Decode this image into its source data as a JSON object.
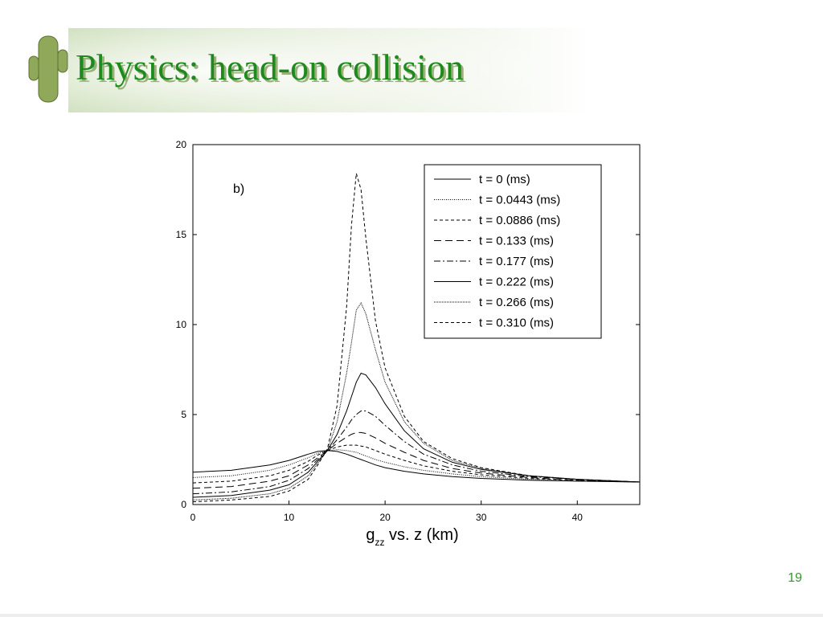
{
  "slide_title": "Physics: head-on collision",
  "page_number": "19",
  "chart_data": {
    "type": "line",
    "annotation": "b)",
    "x_label": [
      "g",
      "zz",
      " vs. z (km)"
    ],
    "x": [
      0,
      4,
      8,
      10,
      12,
      13,
      14,
      15,
      16,
      16.5,
      17,
      17.5,
      18,
      19,
      20,
      22,
      24,
      27,
      30,
      35,
      40,
      46.5
    ],
    "xlim": [
      0,
      46.5
    ],
    "xticks": [
      0,
      10,
      20,
      30,
      40
    ],
    "ylim": [
      0,
      20
    ],
    "yticks": [
      0,
      5,
      10,
      15,
      20
    ],
    "legend": "upper right",
    "series": [
      {
        "name": "t = 0 (ms)",
        "color": "#000000",
        "dash": "none",
        "values": [
          1.8,
          1.9,
          2.2,
          2.45,
          2.8,
          2.95,
          3.0,
          2.95,
          2.8,
          2.7,
          2.6,
          2.5,
          2.4,
          2.2,
          2.05,
          1.85,
          1.7,
          1.55,
          1.45,
          1.35,
          1.3,
          1.25
        ]
      },
      {
        "name": "t = 0.0443 (ms)",
        "color": "#000000",
        "dash": "1 1.5",
        "values": [
          1.5,
          1.6,
          1.9,
          2.2,
          2.6,
          2.85,
          3.0,
          3.05,
          3.0,
          2.95,
          2.9,
          2.8,
          2.7,
          2.5,
          2.35,
          2.1,
          1.9,
          1.7,
          1.55,
          1.4,
          1.3,
          1.25
        ]
      },
      {
        "name": "t = 0.0886 (ms)",
        "color": "#000000",
        "dash": "4 3",
        "values": [
          1.2,
          1.3,
          1.6,
          1.9,
          2.4,
          2.75,
          3.0,
          3.2,
          3.3,
          3.3,
          3.3,
          3.25,
          3.2,
          3.0,
          2.8,
          2.45,
          2.15,
          1.85,
          1.65,
          1.45,
          1.35,
          1.25
        ]
      },
      {
        "name": "t = 0.133 (ms)",
        "color": "#000000",
        "dash": "9 5",
        "values": [
          0.9,
          1.0,
          1.3,
          1.6,
          2.2,
          2.6,
          3.0,
          3.4,
          3.75,
          3.9,
          4.0,
          4.0,
          3.95,
          3.7,
          3.4,
          2.9,
          2.45,
          2.0,
          1.75,
          1.5,
          1.35,
          1.25
        ]
      },
      {
        "name": "t = 0.177 (ms)",
        "color": "#000000",
        "dash": "8 3 2 3",
        "values": [
          0.6,
          0.7,
          1.0,
          1.35,
          2.0,
          2.5,
          3.0,
          3.6,
          4.3,
          4.7,
          5.0,
          5.2,
          5.2,
          4.9,
          4.4,
          3.5,
          2.8,
          2.2,
          1.85,
          1.55,
          1.4,
          1.25
        ]
      },
      {
        "name": "t = 0.222 (ms)",
        "color": "#000000",
        "dash": "none",
        "values": [
          0.4,
          0.5,
          0.8,
          1.1,
          1.8,
          2.4,
          3.0,
          3.9,
          5.2,
          6.0,
          6.8,
          7.3,
          7.2,
          6.5,
          5.6,
          4.1,
          3.1,
          2.35,
          1.95,
          1.6,
          1.4,
          1.25
        ]
      },
      {
        "name": "t = 0.266 (ms)",
        "color": "#000000",
        "dash": "1 1",
        "values": [
          0.25,
          0.35,
          0.6,
          0.9,
          1.6,
          2.3,
          3.0,
          4.6,
          7.3,
          9.0,
          10.8,
          11.2,
          10.6,
          8.6,
          6.8,
          4.6,
          3.4,
          2.45,
          2.0,
          1.6,
          1.4,
          1.25
        ]
      },
      {
        "name": "t = 0.310 (ms)",
        "color": "#000000",
        "dash": "4 3",
        "values": [
          0.15,
          0.25,
          0.45,
          0.75,
          1.4,
          2.2,
          3.1,
          5.5,
          11.0,
          15.5,
          18.4,
          17.5,
          14.8,
          10.2,
          7.6,
          4.9,
          3.5,
          2.55,
          2.05,
          1.6,
          1.4,
          1.25
        ]
      }
    ]
  }
}
